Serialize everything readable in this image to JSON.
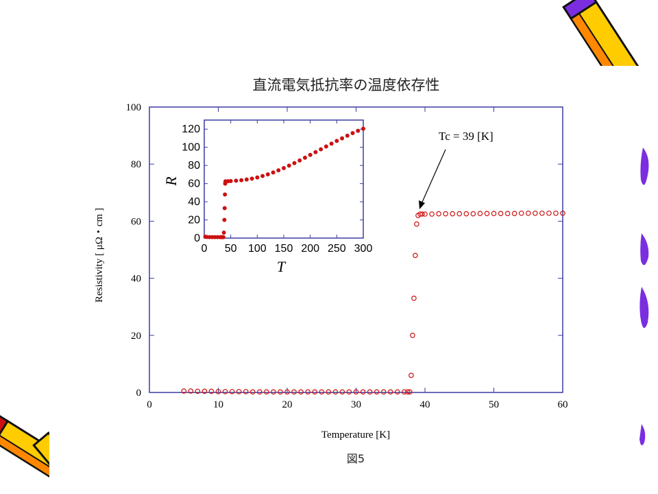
{
  "slide": {
    "figure_caption": "図5",
    "decorations": [
      "pencil-icon-top-right",
      "pencil-icon-bottom-left",
      "purple-brush-strokes-right"
    ]
  },
  "colors": {
    "frame": "#3a3aa0",
    "marker": "#cc1111",
    "inset_frame": "#3a3aa0",
    "pencil_yellow": "#ffcc00",
    "pencil_orange": "#ff8800",
    "brush_purple": "#7a2ee0"
  },
  "chart_data": [
    {
      "id": "main",
      "type": "scatter",
      "title": "直流電気抵抗率の温度依存性",
      "xlabel": "Temperature [K]",
      "ylabel": "Resistivity [ μΩ・cm ]",
      "xlim": [
        0,
        60
      ],
      "ylim": [
        0,
        100
      ],
      "xticks": [
        0,
        10,
        20,
        30,
        40,
        50,
        60
      ],
      "yticks": [
        0,
        20,
        40,
        60,
        80,
        100
      ],
      "marker": "open-circle",
      "annotation": {
        "text": "Tc = 39 [K]",
        "arrow_to": [
          39.2,
          64
        ]
      },
      "series": [
        {
          "x": [
            5,
            6,
            7,
            8,
            9,
            10,
            11,
            12,
            13,
            14,
            15,
            16,
            17,
            18,
            19,
            20,
            21,
            22,
            23,
            24,
            25,
            26,
            27,
            28,
            29,
            30,
            31,
            32,
            33,
            34,
            35,
            36,
            37,
            37.5,
            37.8,
            38.0,
            38.2,
            38.4,
            38.6,
            38.8,
            39.0,
            39.3,
            39.6,
            40,
            41,
            42,
            43,
            44,
            45,
            46,
            47,
            48,
            49,
            50,
            51,
            52,
            53,
            54,
            55,
            56,
            57,
            58,
            59,
            60
          ],
          "y": [
            0.5,
            0.5,
            0.4,
            0.4,
            0.4,
            0.3,
            0.3,
            0.3,
            0.3,
            0.3,
            0.2,
            0.2,
            0.2,
            0.2,
            0.2,
            0.2,
            0.2,
            0.2,
            0.2,
            0.2,
            0.2,
            0.2,
            0.2,
            0.2,
            0.2,
            0.2,
            0.2,
            0.2,
            0.2,
            0.2,
            0.2,
            0.2,
            0.2,
            0.2,
            0.2,
            6,
            20,
            33,
            48,
            59,
            62,
            62.5,
            62.5,
            62.5,
            62.5,
            62.6,
            62.6,
            62.6,
            62.6,
            62.6,
            62.6,
            62.7,
            62.7,
            62.7,
            62.7,
            62.7,
            62.7,
            62.8,
            62.8,
            62.8,
            62.8,
            62.8,
            62.8,
            62.8
          ]
        }
      ]
    },
    {
      "id": "inset",
      "type": "scatter",
      "xlabel": "T",
      "ylabel": "R",
      "xlim": [
        0,
        300
      ],
      "ylim": [
        0,
        130
      ],
      "xticks": [
        0,
        50,
        100,
        150,
        200,
        250,
        300
      ],
      "yticks": [
        0,
        20,
        40,
        60,
        80,
        100,
        120
      ],
      "marker": "filled-circle",
      "series": [
        {
          "x": [
            2,
            5,
            10,
            15,
            20,
            25,
            30,
            33,
            35,
            36,
            37,
            38,
            38.5,
            39,
            39.5,
            40,
            45,
            50,
            60,
            70,
            80,
            90,
            100,
            110,
            120,
            130,
            140,
            150,
            160,
            170,
            180,
            190,
            200,
            210,
            220,
            230,
            240,
            250,
            260,
            270,
            280,
            290,
            300
          ],
          "y": [
            1.5,
            1.2,
            1.0,
            1.0,
            1.0,
            1.0,
            1.0,
            1.0,
            1.0,
            1.0,
            6,
            20,
            33,
            48,
            60,
            62.5,
            62.6,
            62.8,
            63.2,
            63.8,
            64.5,
            65.5,
            66.8,
            68.4,
            70.2,
            72.3,
            74.6,
            77.1,
            79.8,
            82.6,
            85.5,
            88.5,
            91.6,
            94.7,
            97.8,
            100.9,
            104.0,
            107.0,
            109.9,
            112.8,
            115.6,
            118.2,
            120.5
          ]
        }
      ]
    }
  ]
}
